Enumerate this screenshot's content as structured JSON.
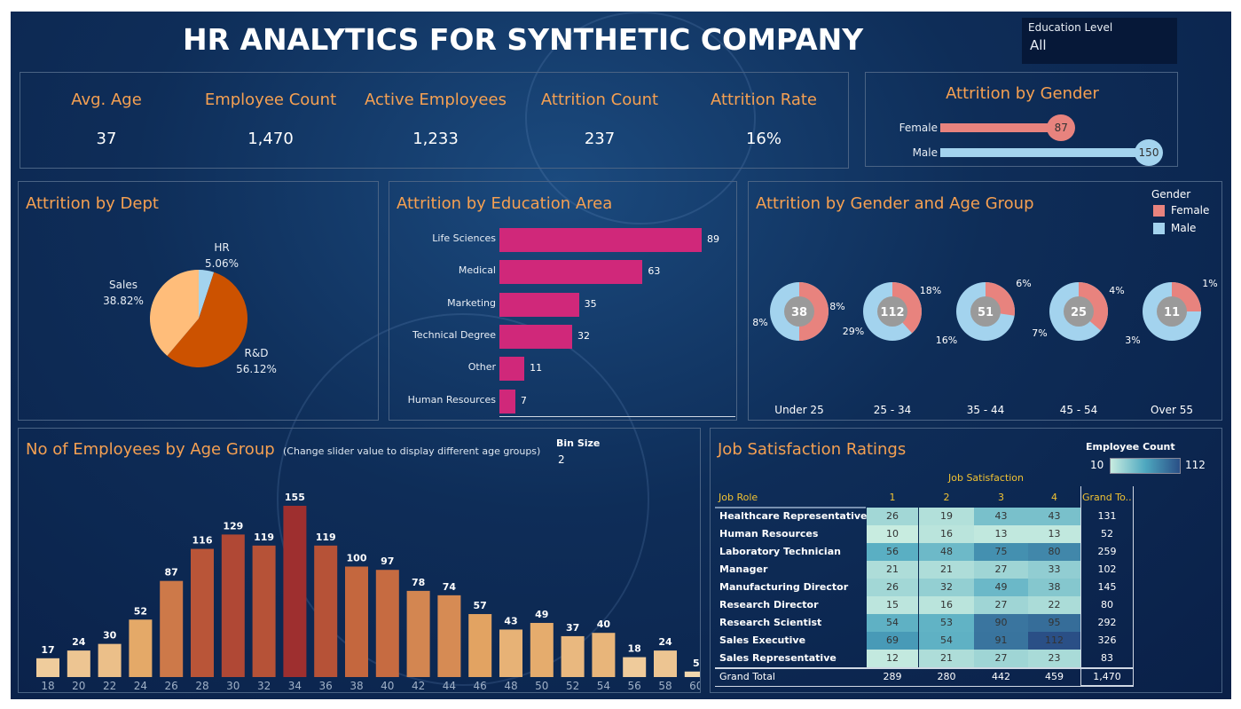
{
  "header": {
    "title": "HR ANALYTICS FOR SYNTHETIC COMPANY"
  },
  "filter": {
    "label": "Education Level",
    "value": "All"
  },
  "kpis": [
    {
      "label": "Avg. Age",
      "value": "37"
    },
    {
      "label": "Employee Count",
      "value": "1,470"
    },
    {
      "label": "Active Employees",
      "value": "1,233"
    },
    {
      "label": "Attrition Count",
      "value": "237"
    },
    {
      "label": "Attrition Rate",
      "value": "16%"
    }
  ],
  "colors": {
    "accent": "#f5a052",
    "female": "#e8837e",
    "male": "#a3d3ee",
    "education_bar": "#d0287a",
    "pie_rd": "#cc5200",
    "pie_sales": "#ffbd7a",
    "pie_hr": "#a3d3ee",
    "donut_center": "#9a9a9a"
  },
  "chart_data": [
    {
      "type": "bar",
      "title": "Attrition by Gender",
      "orientation": "horizontal",
      "categories": [
        "Female",
        "Male"
      ],
      "values": [
        87,
        150
      ],
      "value_labels": [
        "87",
        "150"
      ]
    },
    {
      "type": "pie",
      "title": "Attrition by Dept",
      "categories": [
        "HR",
        "R&D",
        "Sales"
      ],
      "values": [
        5.06,
        56.12,
        38.82
      ],
      "labels": [
        "5.06%",
        "56.12%",
        "38.82%"
      ]
    },
    {
      "type": "bar",
      "title": "Attrition by Education Area",
      "orientation": "horizontal",
      "categories": [
        "Life Sciences",
        "Medical",
        "Marketing",
        "Technical Degree",
        "Other",
        "Human Resources"
      ],
      "values": [
        89,
        63,
        35,
        32,
        11,
        7
      ]
    },
    {
      "type": "pie",
      "title": "Attrition by Gender and Age Group",
      "legend_title": "Gender",
      "legend": [
        "Female",
        "Male"
      ],
      "legend_placement": "top-right",
      "categories": [
        "Under 25",
        "25 - 34",
        "35 - 44",
        "45 - 54",
        "Over 55"
      ],
      "totals": [
        38,
        112,
        51,
        25,
        11
      ],
      "series": [
        {
          "name": "Female",
          "values": [
            8,
            18,
            6,
            4,
            1
          ],
          "labels": [
            "8%",
            "18%",
            "6%",
            "4%",
            "1%"
          ]
        },
        {
          "name": "Male",
          "values": [
            8,
            29,
            16,
            7,
            3
          ],
          "labels": [
            "8%",
            "29%",
            "16%",
            "7%",
            "3%"
          ]
        }
      ]
    },
    {
      "type": "bar",
      "title": "No of Employees by Age Group",
      "subtitle": "(Change slider value to display different age groups)",
      "categories": [
        "18",
        "20",
        "22",
        "24",
        "26",
        "28",
        "30",
        "32",
        "34",
        "36",
        "38",
        "40",
        "42",
        "44",
        "46",
        "48",
        "50",
        "52",
        "54",
        "56",
        "58",
        "60"
      ],
      "values": [
        17,
        24,
        30,
        52,
        87,
        116,
        129,
        119,
        155,
        119,
        100,
        97,
        78,
        74,
        57,
        43,
        49,
        37,
        40,
        18,
        24,
        5
      ],
      "color_range": [
        "#f3d8ae",
        "#9e2f2f"
      ]
    },
    {
      "type": "heatmap",
      "title": "Job Satisfaction Ratings",
      "column_title": "Job Satisfaction",
      "row_header": "Job Role",
      "columns": [
        "1",
        "2",
        "3",
        "4"
      ],
      "total_header": "Grand To..",
      "legend_title": "Employee Count",
      "legend_min": "10",
      "legend_max": "112",
      "color_range": [
        "#c8ece0",
        "#2a4f86"
      ],
      "rows": [
        {
          "role": "Healthcare Representative",
          "values": [
            26,
            19,
            43,
            43
          ],
          "total": "131"
        },
        {
          "role": "Human Resources",
          "values": [
            10,
            16,
            13,
            13
          ],
          "total": "52"
        },
        {
          "role": "Laboratory Technician",
          "values": [
            56,
            48,
            75,
            80
          ],
          "total": "259"
        },
        {
          "role": "Manager",
          "values": [
            21,
            21,
            27,
            33
          ],
          "total": "102"
        },
        {
          "role": "Manufacturing Director",
          "values": [
            26,
            32,
            49,
            38
          ],
          "total": "145"
        },
        {
          "role": "Research Director",
          "values": [
            15,
            16,
            27,
            22
          ],
          "total": "80"
        },
        {
          "role": "Research Scientist",
          "values": [
            54,
            53,
            90,
            95
          ],
          "total": "292"
        },
        {
          "role": "Sales Executive",
          "values": [
            69,
            54,
            91,
            112
          ],
          "total": "326"
        },
        {
          "role": "Sales Representative",
          "values": [
            12,
            21,
            27,
            23
          ],
          "total": "83"
        }
      ],
      "grand_total_label": "Grand Total",
      "grand_totals": [
        "289",
        "280",
        "442",
        "459",
        "1,470"
      ]
    }
  ],
  "bin": {
    "label": "Bin Size",
    "value": "2"
  }
}
